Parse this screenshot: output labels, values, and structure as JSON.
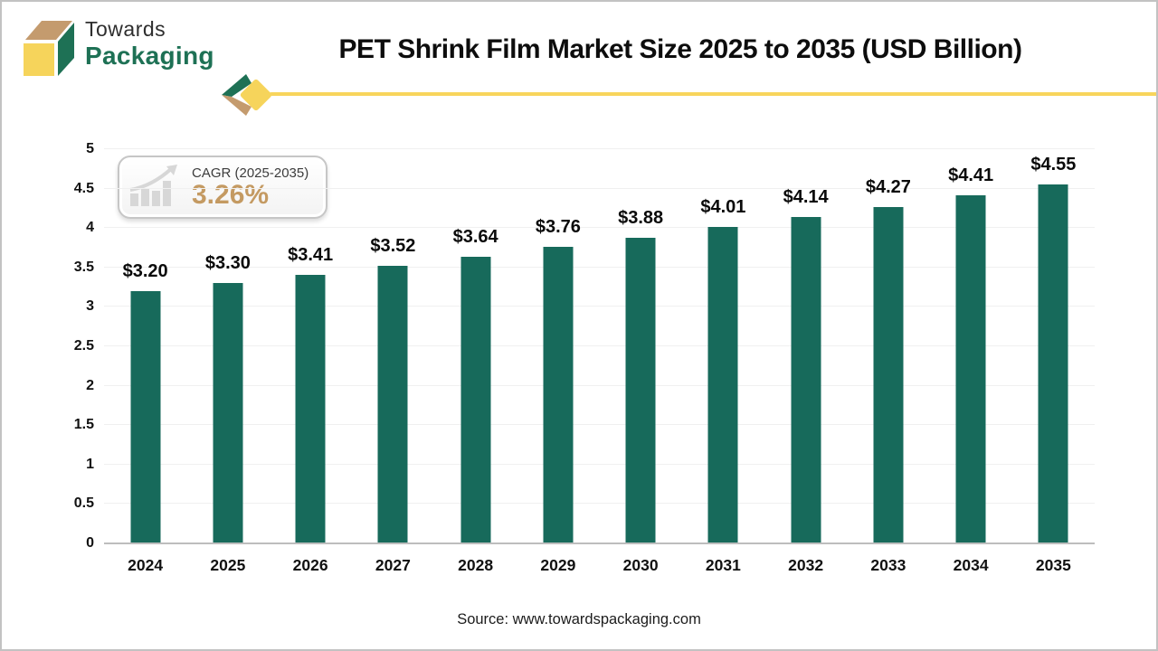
{
  "brand": {
    "line1": "Towards",
    "line2": "Packaging"
  },
  "title": "PET Shrink Film Market Size 2025 to 2035 (USD Billion)",
  "cagr": {
    "label": "CAGR (2025-2035)",
    "value": "3.26%"
  },
  "source": "Source: www.towardspackaging.com",
  "colors": {
    "bar": "#176a5b",
    "brand_green": "#1e7155",
    "brand_yellow": "#f8d55c",
    "brand_tan": "#c49b6e",
    "cagr_value": "#c49a62",
    "axis_line": "#bdbdbd",
    "gridline": "#f0f0f0",
    "icon_gray": "#d7d7d7"
  },
  "chart_data": {
    "type": "bar",
    "title": "PET Shrink Film Market Size 2025 to 2035 (USD Billion)",
    "categories": [
      "2024",
      "2025",
      "2026",
      "2027",
      "2028",
      "2029",
      "2030",
      "2031",
      "2032",
      "2033",
      "2034",
      "2035"
    ],
    "values": [
      3.2,
      3.3,
      3.41,
      3.52,
      3.64,
      3.76,
      3.88,
      4.01,
      4.14,
      4.27,
      4.41,
      4.55
    ],
    "labels": [
      "$3.20",
      "$3.30",
      "$3.41",
      "$3.52",
      "$3.64",
      "$3.76",
      "$3.88",
      "$4.01",
      "$4.14",
      "$4.27",
      "$4.41",
      "$4.55"
    ],
    "xlabel": "",
    "ylabel": "",
    "ylim": [
      0,
      5
    ],
    "ytick_step": 0.5,
    "grid": "horizontal",
    "legend": "none"
  }
}
